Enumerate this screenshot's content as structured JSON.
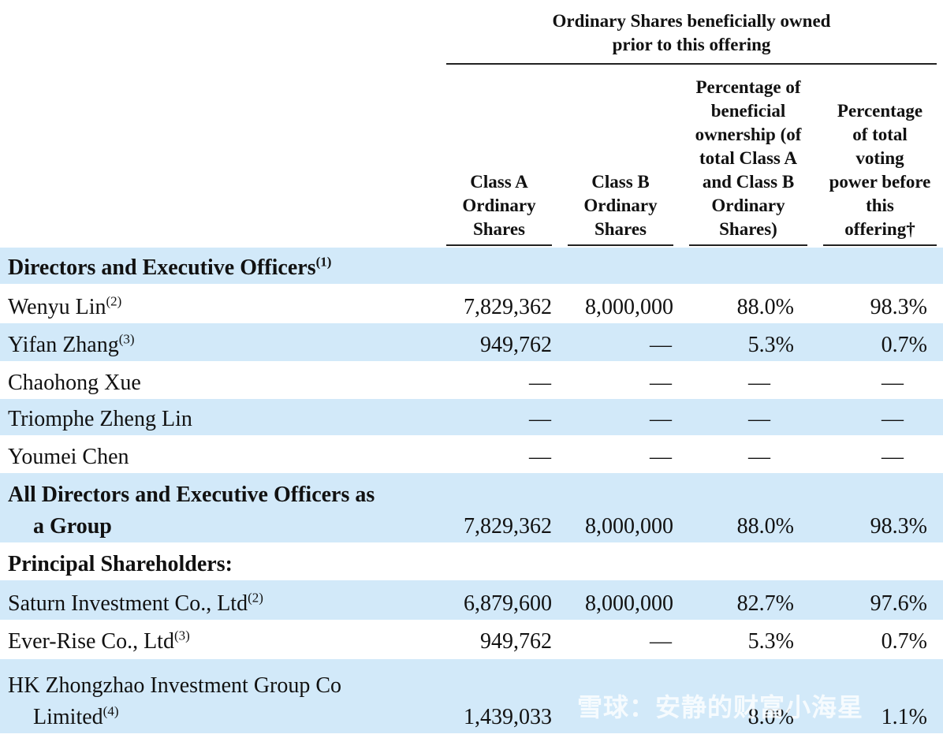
{
  "header": {
    "group_line1": "Ordinary Shares beneficially owned",
    "group_line2": "prior to this offering",
    "columns": {
      "class_a": [
        "Class A",
        "Ordinary",
        "Shares"
      ],
      "class_b": [
        "Class B",
        "Ordinary",
        "Shares"
      ],
      "pct_ownership": [
        "Percentage of",
        "beneficial",
        "ownership (of",
        "total Class A",
        "and Class B",
        "Ordinary",
        "Shares)"
      ],
      "pct_voting": [
        "Percentage",
        "of total",
        "voting",
        "power before",
        "this",
        "offering†"
      ]
    }
  },
  "sections": {
    "directors_title": "Directors and Executive Officers",
    "directors_note": "(1)",
    "principal_title": "Principal Shareholders:"
  },
  "rows": {
    "wenyu": {
      "name": "Wenyu Lin",
      "note": "(2)",
      "class_a": "7,829,362",
      "class_b": "8,000,000",
      "pct_ownership": "88.0%",
      "pct_voting": "98.3%"
    },
    "yifan": {
      "name": "Yifan Zhang",
      "note": "(3)",
      "class_a": "949,762",
      "class_b": "—",
      "pct_ownership": "5.3%",
      "pct_voting": "0.7%"
    },
    "chaohong": {
      "name": "Chaohong Xue",
      "class_a": "—",
      "class_b": "—",
      "pct_ownership": "—",
      "pct_voting": "—"
    },
    "triomphe": {
      "name": "Triomphe Zheng Lin",
      "class_a": "—",
      "class_b": "—",
      "pct_ownership": "—",
      "pct_voting": "—"
    },
    "youmei": {
      "name": "Youmei Chen",
      "class_a": "—",
      "class_b": "—",
      "pct_ownership": "—",
      "pct_voting": "—"
    },
    "group": {
      "name_line1": "All Directors and Executive Officers as",
      "name_line2": "a Group",
      "class_a": "7,829,362",
      "class_b": "8,000,000",
      "pct_ownership": "88.0%",
      "pct_voting": "98.3%"
    },
    "saturn": {
      "name": "Saturn Investment Co., Ltd",
      "note": "(2)",
      "class_a": "6,879,600",
      "class_b": "8,000,000",
      "pct_ownership": "82.7%",
      "pct_voting": "97.6%"
    },
    "everrise": {
      "name": "Ever-Rise Co., Ltd",
      "note": "(3)",
      "class_a": "949,762",
      "class_b": "—",
      "pct_ownership": "5.3%",
      "pct_voting": "0.7%"
    },
    "hk": {
      "name_line1": "HK Zhongzhao Investment Group Co",
      "name_line2": "Limited",
      "note": "(4)",
      "class_a": "1,439,033",
      "class_b": "",
      "pct_ownership": "8.0%",
      "pct_voting": "1.1%"
    }
  },
  "watermark": "雪球：安静的财富小海星",
  "colors": {
    "shade": "#d2e9f9"
  }
}
